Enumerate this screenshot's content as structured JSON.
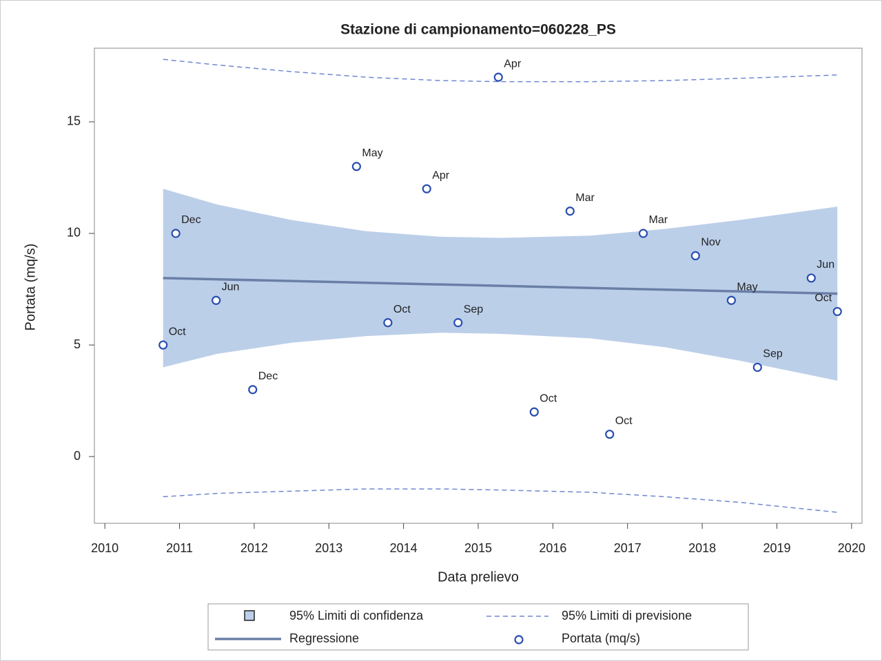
{
  "chart_data": {
    "type": "scatter",
    "title": "Stazione di campionamento=060228_PS",
    "x_label": "Data prelievo",
    "y_label": "Portata (mq/s)",
    "xlim": [
      2009.86,
      2020.14
    ],
    "ylim": [
      -2.99,
      18.3
    ],
    "xticks": [
      2010,
      2011,
      2012,
      2013,
      2014,
      2015,
      2016,
      2017,
      2018,
      2019,
      2020
    ],
    "yticks": [
      0,
      5,
      10,
      15
    ],
    "confidence": {
      "name": "95% Limiti di confidenza",
      "color": "#bccfe9",
      "x": [
        2010.78,
        2011.5,
        2012.5,
        2013.5,
        2014.5,
        2015.3,
        2016.5,
        2017.5,
        2018.5,
        2019.81
      ],
      "upper": [
        12.0,
        11.3,
        10.6,
        10.1,
        9.85,
        9.8,
        9.9,
        10.2,
        10.6,
        11.2
      ],
      "lower": [
        4.0,
        4.6,
        5.1,
        5.4,
        5.55,
        5.5,
        5.3,
        4.9,
        4.3,
        3.4
      ]
    },
    "prediction": {
      "name": "95% Limiti di previsione",
      "color": "#6f86d0",
      "x": [
        2010.78,
        2011.5,
        2012.5,
        2013.5,
        2014.5,
        2015.3,
        2016.5,
        2017.5,
        2018.5,
        2019.81
      ],
      "upper": [
        17.8,
        17.55,
        17.25,
        17.0,
        16.85,
        16.8,
        16.8,
        16.85,
        16.95,
        17.1
      ],
      "lower": [
        -1.8,
        -1.65,
        -1.55,
        -1.45,
        -1.45,
        -1.5,
        -1.6,
        -1.8,
        -2.05,
        -2.5
      ]
    },
    "regression": {
      "name": "Regressione",
      "color": "#6a7fa6",
      "x": [
        2010.78,
        2019.81
      ],
      "values": [
        8.0,
        7.3
      ]
    },
    "points": {
      "name": "Portata (mq/s)",
      "color": "#2a4eb0",
      "x": [
        2010.78,
        2010.95,
        2011.49,
        2011.98,
        2013.37,
        2013.79,
        2014.31,
        2014.73,
        2015.27,
        2015.75,
        2016.23,
        2016.76,
        2017.21,
        2017.91,
        2018.39,
        2018.74,
        2019.46,
        2019.81
      ],
      "values": [
        5,
        10,
        7,
        3,
        13,
        6,
        12,
        6,
        17,
        2,
        11,
        1,
        10,
        9,
        7,
        4,
        8,
        6.5
      ],
      "point_labels": [
        "Oct",
        "Dec",
        "Jun",
        "Dec",
        "May",
        "Oct",
        "Apr",
        "Sep",
        "Apr",
        "Oct",
        "Mar",
        "Oct",
        "Mar",
        "Nov",
        "May",
        "Sep",
        "Jun",
        "Oct"
      ]
    }
  }
}
